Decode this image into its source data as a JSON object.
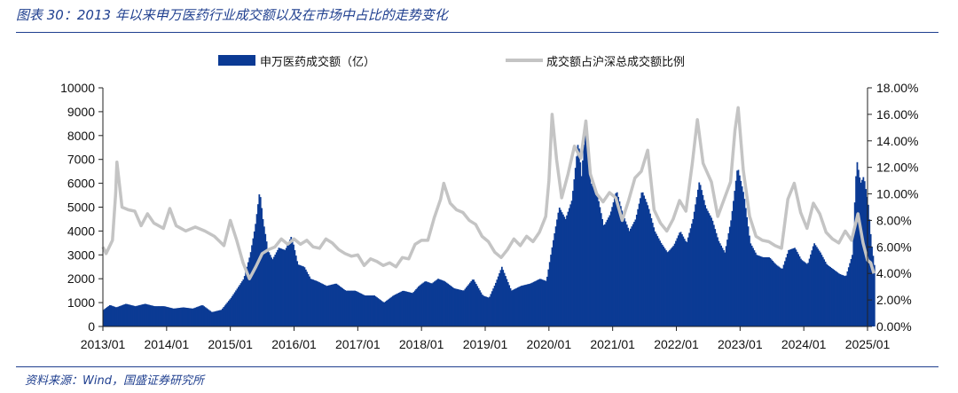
{
  "figure": {
    "title": "图表 30：2013 年以来申万医药行业成交额以及在市场中占比的走势变化",
    "source": "资料来源：Wind，国盛证券研究所"
  },
  "colors": {
    "bar": "#0b3a94",
    "line": "#c4c4c4",
    "rule": "#1f3f8f",
    "axis": "#222222"
  },
  "chart_data": {
    "type": "bar",
    "title": "",
    "legend_position": "top-center",
    "x_axis": {
      "tick_labels": [
        "2013/01",
        "2014/01",
        "2015/01",
        "2016/01",
        "2017/01",
        "2018/01",
        "2019/01",
        "2020/01",
        "2021/01",
        "2022/01",
        "2023/01",
        "2024/01",
        "2025/01"
      ]
    },
    "y_left": {
      "range": [
        0,
        10000
      ],
      "ticks": [
        "0",
        "1000",
        "2000",
        "3000",
        "4000",
        "5000",
        "6000",
        "7000",
        "8000",
        "9000",
        "10000"
      ]
    },
    "y_right": {
      "range": [
        0,
        18
      ],
      "ticks": [
        "0.00%",
        "2.00%",
        "4.00%",
        "6.00%",
        "8.00%",
        "10.00%",
        "12.00%",
        "14.00%",
        "16.00%",
        "18.00%"
      ]
    },
    "series": [
      {
        "name": "申万医药成交额（亿）",
        "kind": "bar",
        "axis": "left",
        "points": [
          [
            2013.0,
            700
          ],
          [
            2013.1,
            900
          ],
          [
            2013.2,
            800
          ],
          [
            2013.35,
            950
          ],
          [
            2013.5,
            850
          ],
          [
            2013.65,
            950
          ],
          [
            2013.8,
            850
          ],
          [
            2013.95,
            850
          ],
          [
            2014.1,
            750
          ],
          [
            2014.25,
            800
          ],
          [
            2014.4,
            750
          ],
          [
            2014.55,
            900
          ],
          [
            2014.7,
            600
          ],
          [
            2014.85,
            700
          ],
          [
            2015.0,
            1200
          ],
          [
            2015.1,
            1600
          ],
          [
            2015.2,
            2000
          ],
          [
            2015.3,
            3000
          ],
          [
            2015.38,
            4200
          ],
          [
            2015.45,
            5700
          ],
          [
            2015.5,
            4500
          ],
          [
            2015.58,
            3200
          ],
          [
            2015.65,
            2800
          ],
          [
            2015.75,
            3300
          ],
          [
            2015.85,
            3200
          ],
          [
            2015.95,
            3800
          ],
          [
            2016.05,
            2600
          ],
          [
            2016.15,
            2500
          ],
          [
            2016.25,
            2000
          ],
          [
            2016.35,
            1900
          ],
          [
            2016.5,
            1700
          ],
          [
            2016.65,
            1800
          ],
          [
            2016.8,
            1500
          ],
          [
            2016.95,
            1500
          ],
          [
            2017.1,
            1300
          ],
          [
            2017.25,
            1300
          ],
          [
            2017.4,
            1000
          ],
          [
            2017.55,
            1300
          ],
          [
            2017.7,
            1500
          ],
          [
            2017.85,
            1400
          ],
          [
            2017.95,
            1700
          ],
          [
            2018.05,
            1900
          ],
          [
            2018.15,
            1800
          ],
          [
            2018.25,
            2000
          ],
          [
            2018.35,
            1900
          ],
          [
            2018.5,
            1600
          ],
          [
            2018.65,
            1500
          ],
          [
            2018.8,
            2000
          ],
          [
            2018.95,
            1300
          ],
          [
            2019.05,
            1200
          ],
          [
            2019.15,
            1800
          ],
          [
            2019.25,
            2500
          ],
          [
            2019.4,
            1500
          ],
          [
            2019.55,
            1700
          ],
          [
            2019.7,
            1800
          ],
          [
            2019.85,
            2000
          ],
          [
            2019.95,
            1900
          ],
          [
            2020.05,
            3500
          ],
          [
            2020.15,
            5000
          ],
          [
            2020.25,
            4500
          ],
          [
            2020.35,
            5300
          ],
          [
            2020.45,
            7800
          ],
          [
            2020.5,
            6300
          ],
          [
            2020.57,
            8700
          ],
          [
            2020.65,
            6000
          ],
          [
            2020.75,
            5500
          ],
          [
            2020.85,
            4200
          ],
          [
            2020.95,
            4700
          ],
          [
            2021.05,
            5700
          ],
          [
            2021.15,
            4700
          ],
          [
            2021.25,
            4000
          ],
          [
            2021.35,
            4500
          ],
          [
            2021.45,
            5700
          ],
          [
            2021.55,
            5000
          ],
          [
            2021.65,
            4000
          ],
          [
            2021.75,
            3500
          ],
          [
            2021.85,
            3100
          ],
          [
            2021.95,
            3400
          ],
          [
            2022.05,
            4000
          ],
          [
            2022.15,
            3500
          ],
          [
            2022.25,
            4500
          ],
          [
            2022.35,
            6100
          ],
          [
            2022.45,
            5000
          ],
          [
            2022.55,
            4500
          ],
          [
            2022.65,
            3600
          ],
          [
            2022.75,
            3100
          ],
          [
            2022.85,
            4500
          ],
          [
            2022.95,
            6700
          ],
          [
            2023.05,
            5500
          ],
          [
            2023.15,
            3500
          ],
          [
            2023.25,
            3000
          ],
          [
            2023.35,
            2900
          ],
          [
            2023.45,
            2900
          ],
          [
            2023.55,
            2600
          ],
          [
            2023.65,
            2400
          ],
          [
            2023.75,
            3200
          ],
          [
            2023.85,
            3300
          ],
          [
            2023.95,
            2800
          ],
          [
            2024.05,
            2600
          ],
          [
            2024.15,
            3500
          ],
          [
            2024.25,
            3100
          ],
          [
            2024.35,
            2600
          ],
          [
            2024.45,
            2400
          ],
          [
            2024.55,
            2200
          ],
          [
            2024.65,
            2100
          ],
          [
            2024.75,
            3000
          ],
          [
            2024.82,
            7000
          ],
          [
            2024.88,
            6000
          ],
          [
            2024.93,
            6300
          ],
          [
            2025.0,
            5100
          ],
          [
            2025.05,
            3500
          ],
          [
            2025.1,
            2500
          ]
        ]
      },
      {
        "name": "成交额占沪深总成交额比例",
        "kind": "line",
        "axis": "right",
        "points": [
          [
            2013.0,
            6.0
          ],
          [
            2013.05,
            5.5
          ],
          [
            2013.15,
            6.5
          ],
          [
            2013.2,
            10.0
          ],
          [
            2013.22,
            12.4
          ],
          [
            2013.3,
            9.0
          ],
          [
            2013.4,
            8.8
          ],
          [
            2013.5,
            8.7
          ],
          [
            2013.6,
            7.6
          ],
          [
            2013.7,
            8.5
          ],
          [
            2013.8,
            7.8
          ],
          [
            2013.95,
            7.4
          ],
          [
            2014.05,
            8.9
          ],
          [
            2014.15,
            7.6
          ],
          [
            2014.3,
            7.2
          ],
          [
            2014.45,
            7.5
          ],
          [
            2014.6,
            7.2
          ],
          [
            2014.75,
            6.8
          ],
          [
            2014.9,
            6.1
          ],
          [
            2015.0,
            8.0
          ],
          [
            2015.1,
            6.5
          ],
          [
            2015.2,
            4.8
          ],
          [
            2015.3,
            3.6
          ],
          [
            2015.4,
            4.5
          ],
          [
            2015.5,
            5.5
          ],
          [
            2015.6,
            5.8
          ],
          [
            2015.7,
            6.0
          ],
          [
            2015.8,
            6.6
          ],
          [
            2015.9,
            6.2
          ],
          [
            2016.0,
            6.6
          ],
          [
            2016.1,
            6.2
          ],
          [
            2016.2,
            6.5
          ],
          [
            2016.3,
            6.0
          ],
          [
            2016.4,
            5.9
          ],
          [
            2016.5,
            6.6
          ],
          [
            2016.6,
            6.3
          ],
          [
            2016.7,
            5.8
          ],
          [
            2016.8,
            5.5
          ],
          [
            2016.9,
            5.3
          ],
          [
            2017.0,
            5.4
          ],
          [
            2017.1,
            4.6
          ],
          [
            2017.2,
            5.1
          ],
          [
            2017.3,
            4.9
          ],
          [
            2017.4,
            4.6
          ],
          [
            2017.5,
            4.8
          ],
          [
            2017.6,
            4.5
          ],
          [
            2017.7,
            5.2
          ],
          [
            2017.8,
            5.1
          ],
          [
            2017.9,
            6.2
          ],
          [
            2018.0,
            6.5
          ],
          [
            2018.1,
            6.5
          ],
          [
            2018.2,
            8.2
          ],
          [
            2018.3,
            9.6
          ],
          [
            2018.35,
            10.8
          ],
          [
            2018.45,
            9.3
          ],
          [
            2018.55,
            8.8
          ],
          [
            2018.65,
            8.6
          ],
          [
            2018.75,
            8.0
          ],
          [
            2018.85,
            7.7
          ],
          [
            2018.95,
            6.8
          ],
          [
            2019.05,
            6.4
          ],
          [
            2019.15,
            5.6
          ],
          [
            2019.25,
            5.2
          ],
          [
            2019.35,
            5.8
          ],
          [
            2019.45,
            6.6
          ],
          [
            2019.55,
            6.1
          ],
          [
            2019.65,
            6.8
          ],
          [
            2019.75,
            6.4
          ],
          [
            2019.85,
            7.1
          ],
          [
            2019.95,
            8.3
          ],
          [
            2020.0,
            11.0
          ],
          [
            2020.05,
            16.0
          ],
          [
            2020.12,
            12.6
          ],
          [
            2020.2,
            9.7
          ],
          [
            2020.3,
            11.5
          ],
          [
            2020.4,
            13.6
          ],
          [
            2020.5,
            12.7
          ],
          [
            2020.58,
            15.5
          ],
          [
            2020.65,
            11.5
          ],
          [
            2020.75,
            10.0
          ],
          [
            2020.85,
            9.4
          ],
          [
            2020.95,
            10.1
          ],
          [
            2021.05,
            9.7
          ],
          [
            2021.15,
            8.0
          ],
          [
            2021.25,
            9.5
          ],
          [
            2021.35,
            11.2
          ],
          [
            2021.45,
            11.7
          ],
          [
            2021.55,
            13.3
          ],
          [
            2021.65,
            8.8
          ],
          [
            2021.75,
            7.8
          ],
          [
            2021.85,
            7.2
          ],
          [
            2021.95,
            8.1
          ],
          [
            2022.05,
            9.5
          ],
          [
            2022.15,
            8.7
          ],
          [
            2022.25,
            12.3
          ],
          [
            2022.33,
            15.6
          ],
          [
            2022.42,
            12.3
          ],
          [
            2022.55,
            10.9
          ],
          [
            2022.65,
            8.3
          ],
          [
            2022.75,
            9.6
          ],
          [
            2022.85,
            10.9
          ],
          [
            2022.92,
            14.8
          ],
          [
            2022.97,
            16.5
          ],
          [
            2023.05,
            11.8
          ],
          [
            2023.15,
            8.3
          ],
          [
            2023.25,
            6.8
          ],
          [
            2023.35,
            6.5
          ],
          [
            2023.45,
            6.4
          ],
          [
            2023.55,
            6.1
          ],
          [
            2023.65,
            5.9
          ],
          [
            2023.75,
            9.6
          ],
          [
            2023.85,
            10.8
          ],
          [
            2023.95,
            8.6
          ],
          [
            2024.05,
            7.4
          ],
          [
            2024.15,
            9.3
          ],
          [
            2024.25,
            8.5
          ],
          [
            2024.35,
            7.1
          ],
          [
            2024.45,
            6.6
          ],
          [
            2024.55,
            6.3
          ],
          [
            2024.65,
            7.2
          ],
          [
            2024.75,
            6.5
          ],
          [
            2024.85,
            8.5
          ],
          [
            2024.93,
            6.3
          ],
          [
            2025.0,
            5.0
          ],
          [
            2025.05,
            4.8
          ],
          [
            2025.1,
            4.0
          ]
        ]
      }
    ]
  }
}
